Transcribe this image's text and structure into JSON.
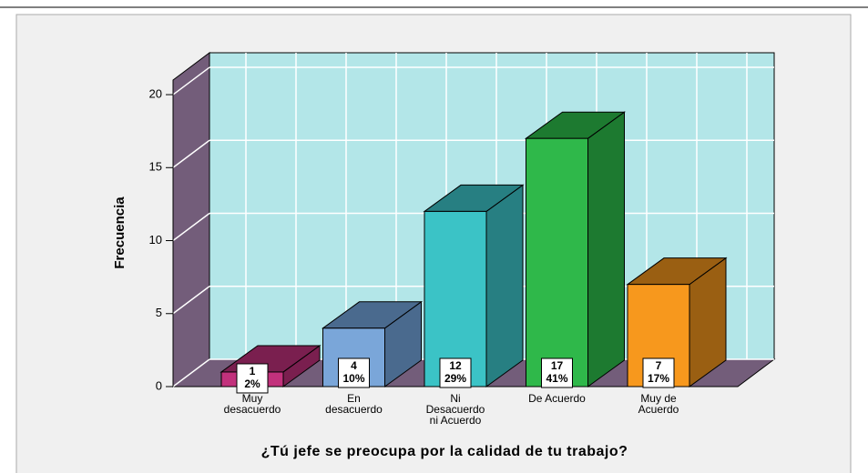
{
  "chart_data": {
    "type": "bar3d",
    "x_label": "¿Tú jefe se preocupa por la calidad de tu trabajo?",
    "y_label": "Frecuencia",
    "categories": [
      "Muy\ndesacuerdo",
      "En\ndesacuerdo",
      "Ni\nDesacuerdo\nni Acuerdo",
      "De Acuerdo",
      "Muy de\nAcuerdo"
    ],
    "values": [
      1,
      4,
      12,
      17,
      7
    ],
    "percent_labels": [
      "2%",
      "10%",
      "29%",
      "41%",
      "17%"
    ],
    "colors": [
      "#c2317c",
      "#7aa6d9",
      "#3bc3c6",
      "#2fb84a",
      "#f7981d"
    ],
    "side_colors": [
      "#7a1f4f",
      "#4a6a8e",
      "#277f82",
      "#1d7a30",
      "#9a5f12"
    ],
    "ylim": [
      0,
      21
    ],
    "yticks": [
      0,
      5,
      10,
      15,
      20
    ],
    "grid": true
  }
}
